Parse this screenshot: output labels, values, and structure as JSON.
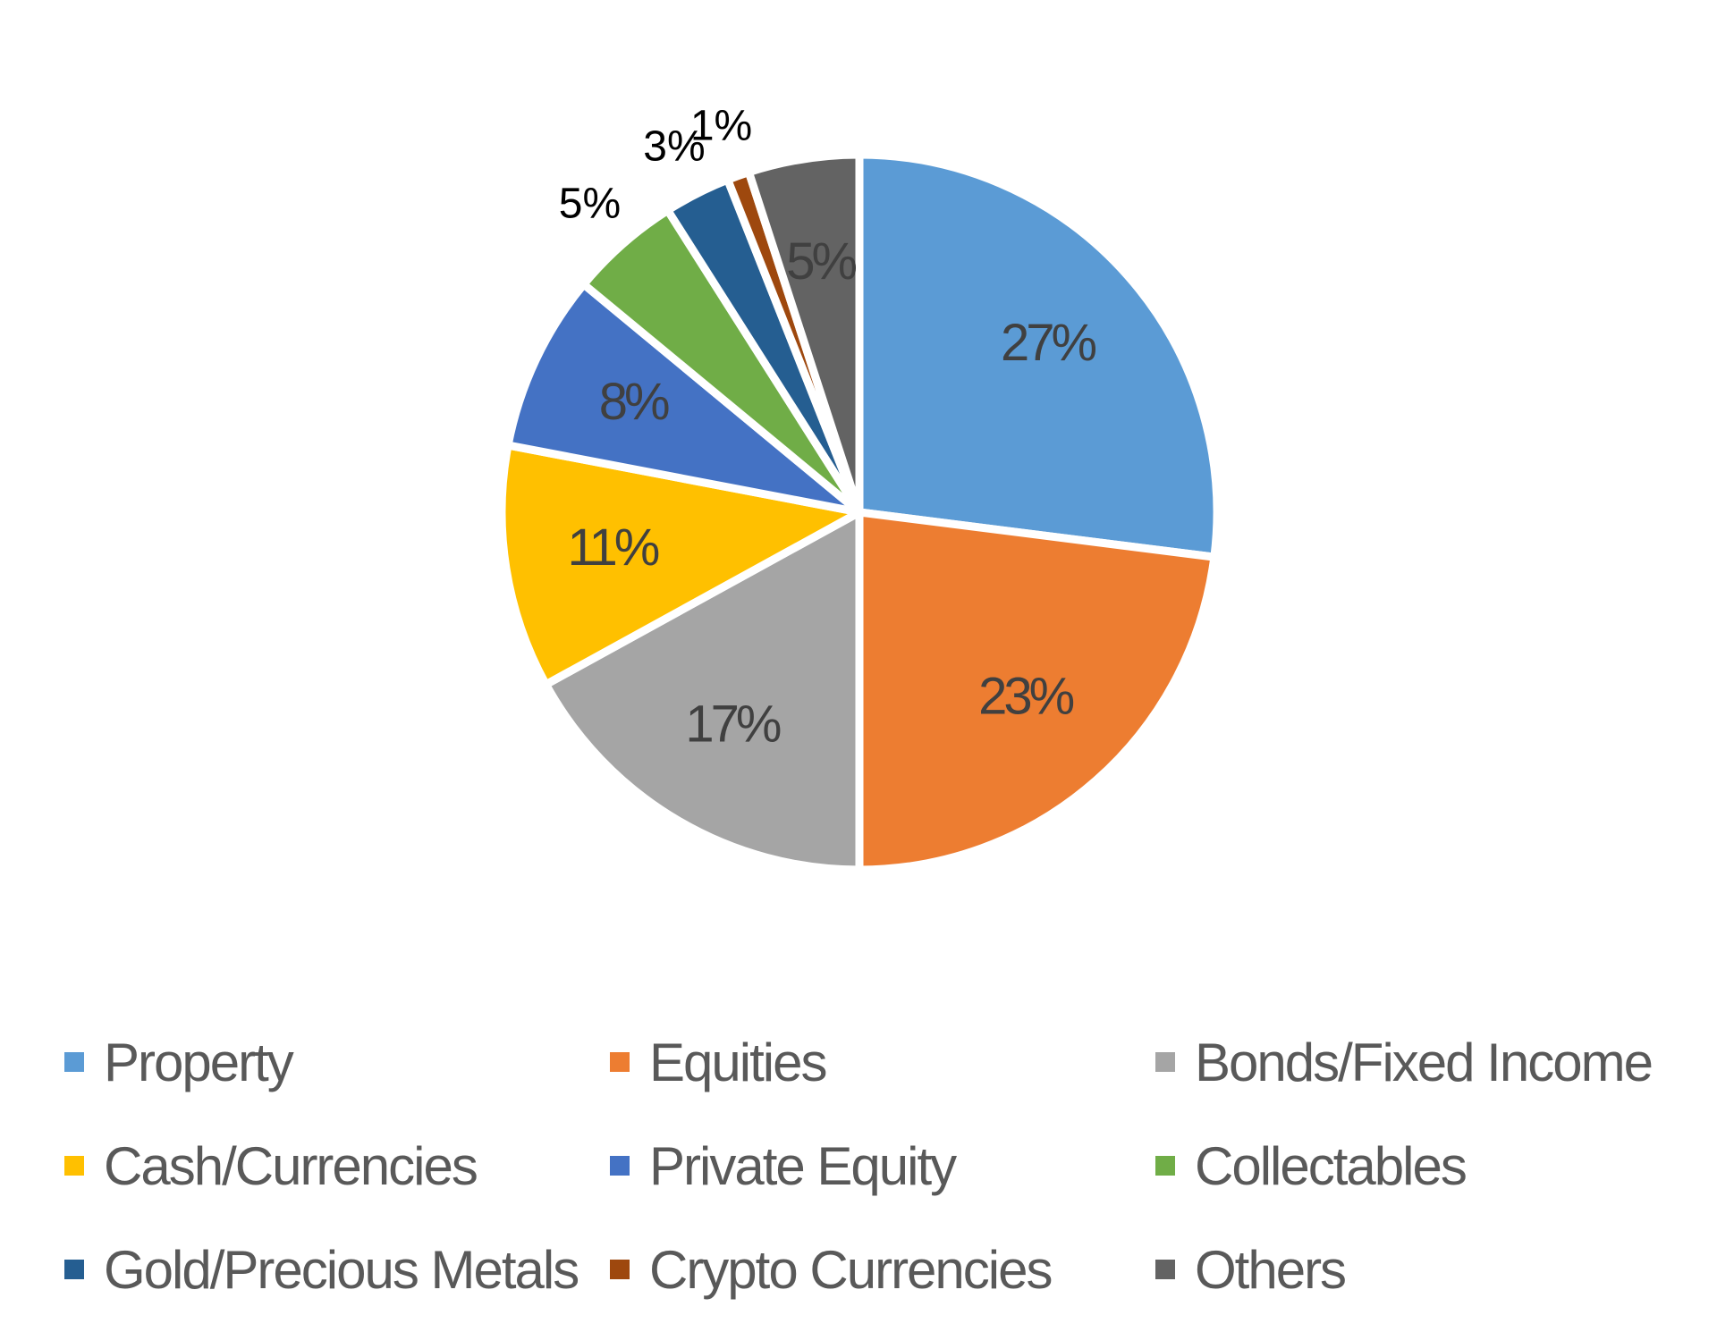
{
  "chart_data": {
    "type": "pie",
    "title": "",
    "slices": [
      {
        "label": "Property",
        "value": 27,
        "display": "27%",
        "color": "#5B9BD5"
      },
      {
        "label": "Equities",
        "value": 23,
        "display": "23%",
        "color": "#ED7D31"
      },
      {
        "label": "Bonds/Fixed Income",
        "value": 17,
        "display": "17%",
        "color": "#A5A5A5"
      },
      {
        "label": "Cash/Currencies",
        "value": 11,
        "display": "11%",
        "color": "#FFC000"
      },
      {
        "label": "Private Equity",
        "value": 8,
        "display": "8%",
        "color": "#4472C4"
      },
      {
        "label": "Collectables",
        "value": 5,
        "display": "5%",
        "color": "#70AD47"
      },
      {
        "label": "Gold/Precious Metals",
        "value": 3,
        "display": "3%",
        "color": "#255E91"
      },
      {
        "label": "Crypto Currencies",
        "value": 1,
        "display": "1%",
        "color": "#9E480E"
      },
      {
        "label": "Others",
        "value": 5,
        "display": "5%",
        "color": "#636363"
      }
    ],
    "legend_position": "bottom",
    "inside_label_color": "#404040",
    "outside_label_color": "#000000"
  },
  "legend": {
    "items": [
      {
        "label": "Property",
        "color": "#5B9BD5"
      },
      {
        "label": "Equities",
        "color": "#ED7D31"
      },
      {
        "label": "Bonds/Fixed Income",
        "color": "#A5A5A5"
      },
      {
        "label": "Cash/Currencies",
        "color": "#FFC000"
      },
      {
        "label": "Private Equity",
        "color": "#4472C4"
      },
      {
        "label": "Collectables",
        "color": "#70AD47"
      },
      {
        "label": "Gold/Precious Metals",
        "color": "#255E91"
      },
      {
        "label": "Crypto Currencies",
        "color": "#9E480E"
      },
      {
        "label": "Others",
        "color": "#636363"
      }
    ]
  }
}
